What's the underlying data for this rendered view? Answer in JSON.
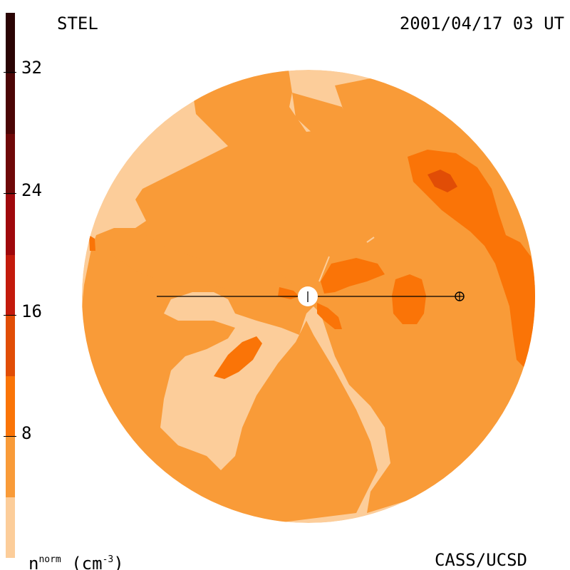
{
  "header": {
    "source": "STEL",
    "timestamp": "2001/04/17 03 UT"
  },
  "footer": {
    "quantity": "n",
    "quantity_sup": "norm",
    "unit_open": "(cm",
    "unit_sup": "-3",
    "unit_close": ")",
    "credit": "CASS/UCSD"
  },
  "colorbar": {
    "tick_labels": [
      "32",
      "24",
      "16",
      "8"
    ],
    "tick_values": [
      32,
      24,
      16,
      8
    ],
    "levels": [
      {
        "min": 0,
        "max": 4,
        "color": "#fccd9a"
      },
      {
        "min": 4,
        "max": 8,
        "color": "#f99b38"
      },
      {
        "min": 8,
        "max": 12,
        "color": "#fa7407"
      },
      {
        "min": 12,
        "max": 16,
        "color": "#e14d06"
      },
      {
        "min": 16,
        "max": 20,
        "color": "#c31a0c"
      },
      {
        "min": 20,
        "max": 24,
        "color": "#9f080c"
      },
      {
        "min": 24,
        "max": 28,
        "color": "#6f0808"
      },
      {
        "min": 28,
        "max": 32,
        "color": "#4b0505"
      },
      {
        "min": 32,
        "max": 36,
        "color": "#2a0404"
      }
    ]
  },
  "map": {
    "background_color": "#fccd9a",
    "sun_symbol": "sun-disk",
    "earth_symbol": "earth-circled-plus"
  }
}
